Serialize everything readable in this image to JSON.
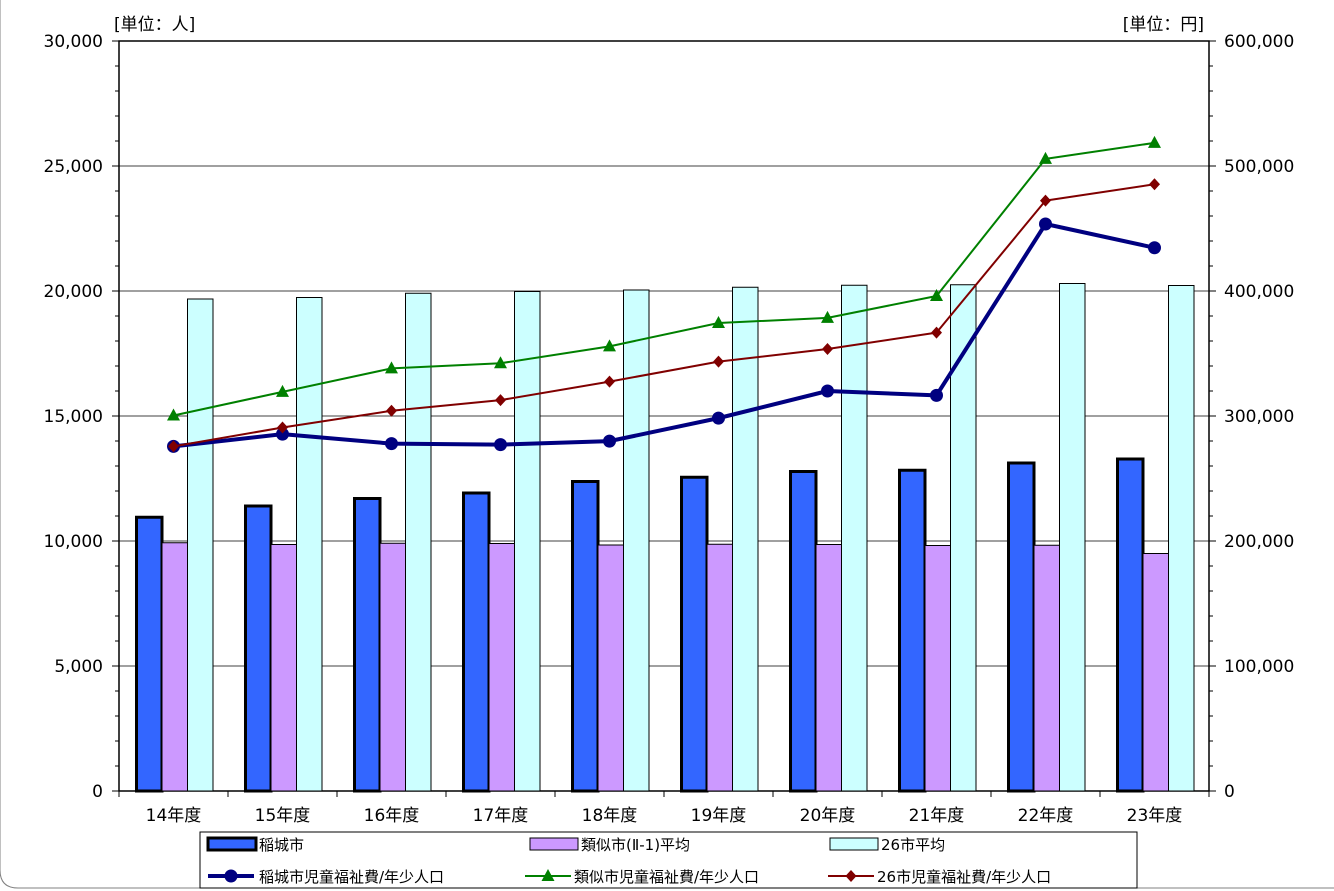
{
  "chart_data": {
    "type": "bar",
    "categories": [
      "14年度",
      "15年度",
      "16年度",
      "17年度",
      "18年度",
      "19年度",
      "20年度",
      "21年度",
      "22年度",
      "23年度"
    ],
    "y_left": {
      "label": "[単位：人]",
      "lim": [
        0,
        30000
      ],
      "ticks": [
        "0",
        "5,000",
        "10,000",
        "15,000",
        "20,000",
        "25,000",
        "30,000"
      ],
      "tick_values": [
        0,
        5000,
        10000,
        15000,
        20000,
        25000,
        30000
      ]
    },
    "y_right": {
      "label": "[単位：円]",
      "lim": [
        0,
        600000
      ],
      "ticks": [
        "0",
        "100,000",
        "200,000",
        "300,000",
        "400,000",
        "500,000",
        "600,000"
      ],
      "tick_values": [
        0,
        100000,
        200000,
        300000,
        400000,
        500000,
        600000
      ]
    },
    "grid": true,
    "legend_position": "bottom",
    "bar_series": [
      {
        "name": "稲城市",
        "color": "#3366ff",
        "values": [
          10950,
          11400,
          11700,
          11920,
          12380,
          12550,
          12780,
          12830,
          13120,
          13280
        ]
      },
      {
        "name": "類似市(Ⅱ-1)平均",
        "color": "#cc99ff",
        "values": [
          9930,
          9860,
          9910,
          9900,
          9840,
          9870,
          9860,
          9820,
          9830,
          9500
        ]
      },
      {
        "name": "26市平均",
        "color": "#ccffff",
        "values": [
          19680,
          19740,
          19910,
          19980,
          20040,
          20150,
          20230,
          20250,
          20300,
          20220
        ]
      }
    ],
    "line_series": [
      {
        "name": "稲城市児童福祉費/年少人口",
        "color": "#000080",
        "marker": "circle",
        "axis": "right",
        "values": [
          275700,
          285500,
          277900,
          277100,
          279900,
          298300,
          320000,
          316500,
          453600,
          434600
        ]
      },
      {
        "name": "類似市児童福祉費/年少人口",
        "color": "#008000",
        "marker": "triangle",
        "axis": "right",
        "values": [
          300400,
          319300,
          338100,
          342200,
          355700,
          374400,
          378500,
          396000,
          505700,
          518500
        ]
      },
      {
        "name": "26市児童福祉費/年少人口",
        "color": "#800000",
        "marker": "diamond",
        "axis": "right",
        "values": [
          275700,
          290800,
          304200,
          312700,
          327500,
          343500,
          353600,
          366700,
          472300,
          485400
        ]
      }
    ]
  }
}
